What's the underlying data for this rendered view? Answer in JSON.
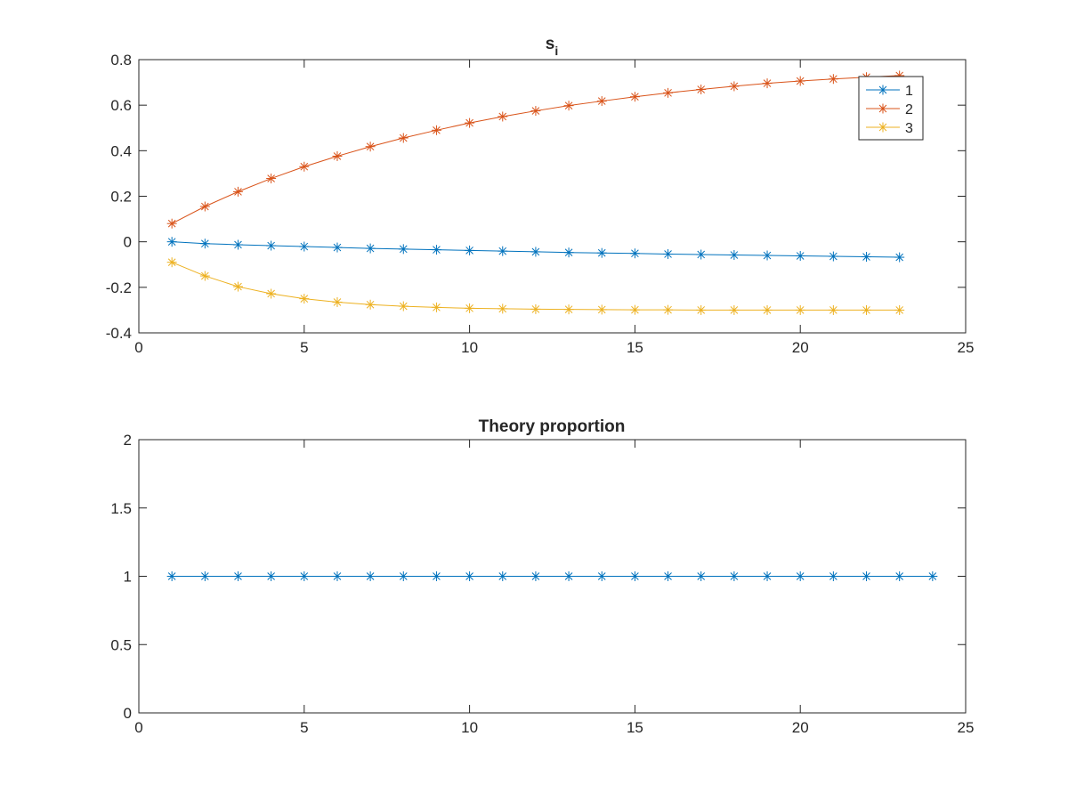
{
  "colors": {
    "series1": "#0072BD",
    "series2": "#D95319",
    "series3": "#EDB120",
    "axes": "#262626"
  },
  "marker": "asterisk",
  "chart_data": [
    {
      "type": "line",
      "title": "s",
      "title_subscript": "i",
      "xlabel": "",
      "ylabel": "",
      "xlim": [
        0,
        25
      ],
      "ylim": [
        -0.4,
        0.8
      ],
      "xticks": [
        "0",
        "5",
        "10",
        "15",
        "20",
        "25"
      ],
      "yticks": [
        "-0.4",
        "-0.2",
        "0",
        "0.2",
        "0.4",
        "0.6",
        "0.8"
      ],
      "grid": false,
      "legend": "top-right",
      "x": [
        1,
        2,
        3,
        4,
        5,
        6,
        7,
        8,
        9,
        10,
        11,
        12,
        13,
        14,
        15,
        16,
        17,
        18,
        19,
        20,
        21,
        22,
        23
      ],
      "series": [
        {
          "name": "1",
          "values": [
            0.0,
            -0.008,
            -0.013,
            -0.017,
            -0.021,
            -0.025,
            -0.029,
            -0.032,
            -0.035,
            -0.038,
            -0.041,
            -0.044,
            -0.047,
            -0.049,
            -0.051,
            -0.054,
            -0.056,
            -0.058,
            -0.06,
            -0.062,
            -0.064,
            -0.066,
            -0.068
          ]
        },
        {
          "name": "2",
          "values": [
            0.08,
            0.155,
            0.22,
            0.278,
            0.33,
            0.376,
            0.418,
            0.456,
            0.49,
            0.522,
            0.55,
            0.575,
            0.598,
            0.618,
            0.637,
            0.654,
            0.669,
            0.683,
            0.696,
            0.706,
            0.715,
            0.723,
            0.73
          ]
        },
        {
          "name": "3",
          "values": [
            -0.09,
            -0.15,
            -0.197,
            -0.228,
            -0.25,
            -0.265,
            -0.276,
            -0.283,
            -0.288,
            -0.292,
            -0.294,
            -0.296,
            -0.297,
            -0.298,
            -0.299,
            -0.299,
            -0.3,
            -0.3,
            -0.3,
            -0.3,
            -0.3,
            -0.3,
            -0.3
          ]
        }
      ]
    },
    {
      "type": "line",
      "title": "Theory proportion",
      "xlabel": "",
      "ylabel": "",
      "xlim": [
        0,
        25
      ],
      "ylim": [
        0,
        2
      ],
      "xticks": [
        "0",
        "5",
        "10",
        "15",
        "20",
        "25"
      ],
      "yticks": [
        "0",
        "0.5",
        "1",
        "1.5",
        "2"
      ],
      "grid": false,
      "x": [
        1,
        2,
        3,
        4,
        5,
        6,
        7,
        8,
        9,
        10,
        11,
        12,
        13,
        14,
        15,
        16,
        17,
        18,
        19,
        20,
        21,
        22,
        23,
        24
      ],
      "series": [
        {
          "values": [
            1,
            1,
            1,
            1,
            1,
            1,
            1,
            1,
            1,
            1,
            1,
            1,
            1,
            1,
            1,
            1,
            1,
            1,
            1,
            1,
            1,
            1,
            1,
            1
          ]
        }
      ]
    }
  ]
}
